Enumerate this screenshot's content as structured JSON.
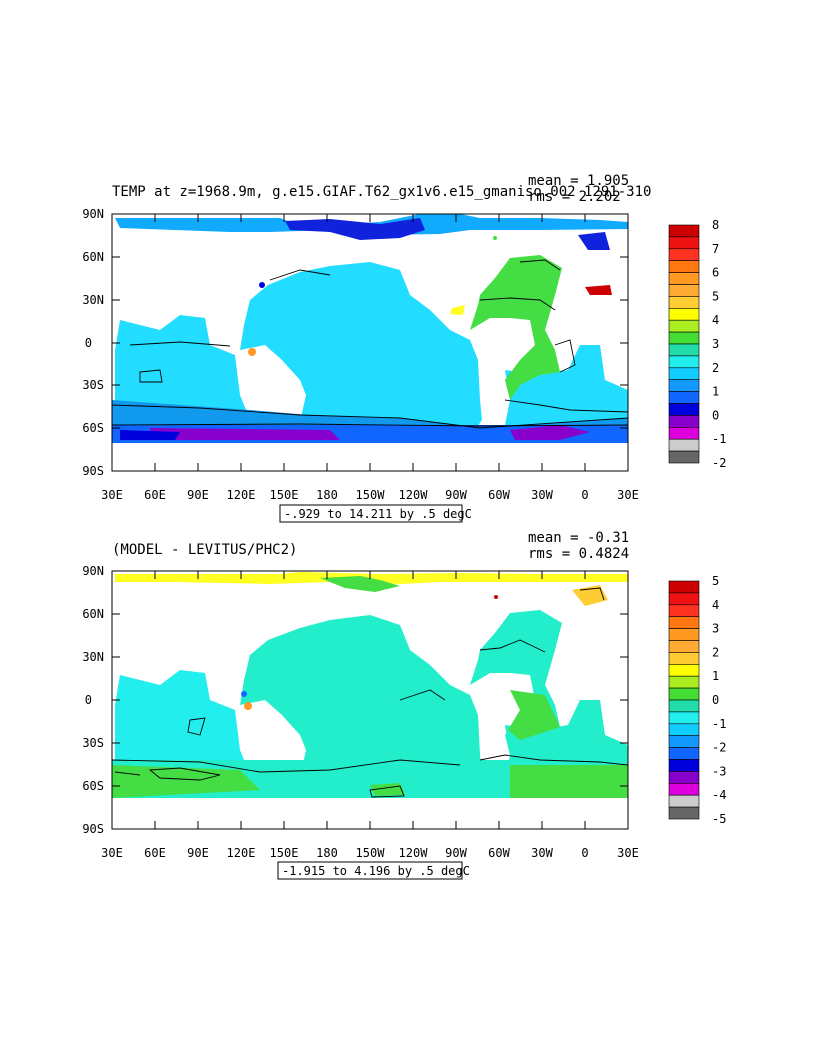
{
  "panels": [
    {
      "title": "TEMP at z=1968.9m, g.e15.GIAF.T62_gx1v6.e15_gmaniso.002 1291-310",
      "mean_label": "mean = 1.905",
      "rms_label": "rms = 2.202",
      "range_label": "-.929 to 14.211 by .5 degC",
      "colorbar": {
        "labels": [
          "8",
          "7",
          "6",
          "5",
          "4",
          "3",
          "2",
          "1",
          "0",
          "-1",
          "-2"
        ],
        "colors": [
          "#cc0000",
          "#ee1111",
          "#ff3322",
          "#ff7711",
          "#ff9922",
          "#ffaa33",
          "#ffcc33",
          "#ffff00",
          "#aaee22",
          "#44dd33",
          "#22ddaa",
          "#22eeee",
          "#11ccff",
          "#1199ff",
          "#1166ff",
          "#0000dd",
          "#8800cc",
          "#dd00dd",
          "#cccccc",
          "#666666"
        ]
      }
    },
    {
      "title": "(MODEL - LEVITUS/PHC2)",
      "mean_label": "mean = -0.31",
      "rms_label": "rms = 0.4824",
      "range_label": "-1.915 to 4.196 by .5 degC",
      "colorbar": {
        "labels": [
          "5",
          "4",
          "3",
          "2",
          "1",
          "0",
          "-1",
          "-2",
          "-3",
          "-4",
          "-5"
        ],
        "colors": [
          "#cc0000",
          "#ee1111",
          "#ff3322",
          "#ff7711",
          "#ff9922",
          "#ffaa33",
          "#ffcc33",
          "#ffff00",
          "#aaee22",
          "#44dd33",
          "#22ddaa",
          "#22eeee",
          "#11ccff",
          "#1199ff",
          "#1166ff",
          "#0000dd",
          "#8800cc",
          "#dd00dd",
          "#cccccc",
          "#666666"
        ]
      }
    }
  ],
  "axes": {
    "lat_labels": [
      "90N",
      "60N",
      "30N",
      "0",
      "30S",
      "60S",
      "90S"
    ],
    "lon_labels": [
      "30E",
      "60E",
      "90E",
      "120E",
      "150E",
      "180",
      "150W",
      "120W",
      "90W",
      "60W",
      "30W",
      "0",
      "30E"
    ]
  }
}
